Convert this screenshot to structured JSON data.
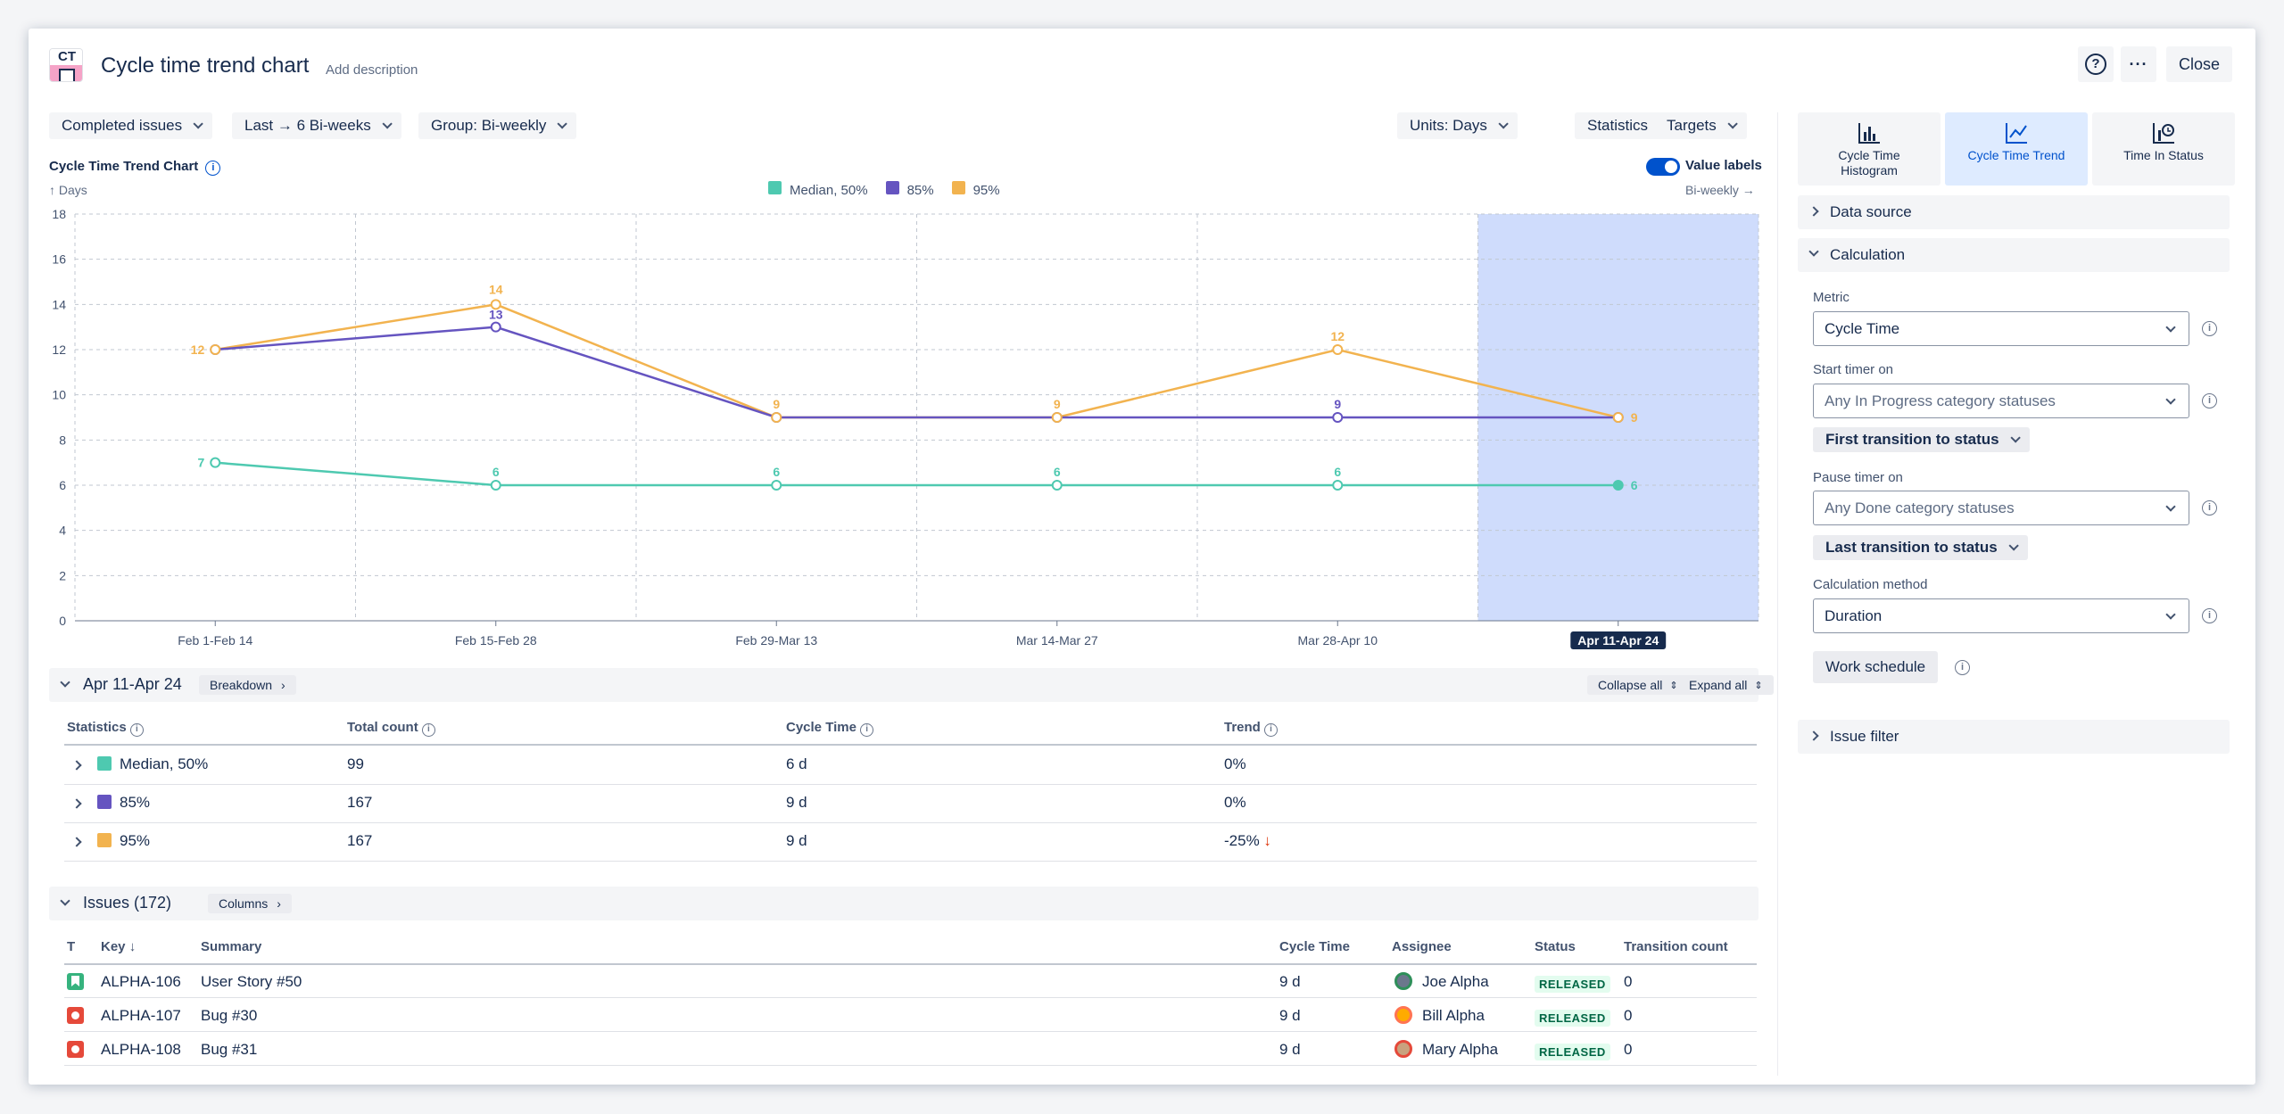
{
  "header": {
    "logo_text": "CT",
    "title": "Cycle time trend chart",
    "add_description": "Add description",
    "help_icon": "question-circle-icon",
    "more_icon": "ellipsis-icon",
    "close_label": "Close"
  },
  "toolbar": {
    "left": [
      "Completed issues",
      "Last → 6 Bi-weeks",
      "Group: Bi-weekly"
    ],
    "right": [
      "Units: Days",
      "Statistics",
      "Targets"
    ]
  },
  "chart_header": {
    "title": "Cycle Time Trend Chart",
    "y_axis_label": "↑ Days",
    "x_axis_label": "Bi-weekly →",
    "value_labels": "Value labels"
  },
  "colors": {
    "median": "#4ec9b0",
    "p85": "#6554c0",
    "p95": "#f2b34f",
    "accent": "#0052cc",
    "highlight": "#cfdcfc"
  },
  "chart_data": {
    "type": "line",
    "title": "Cycle Time Trend Chart",
    "xlabel": "Bi-weekly",
    "ylabel": "Days",
    "categories": [
      "Feb 1-Feb 14",
      "Feb 15-Feb 28",
      "Feb 29-Mar 13",
      "Mar 14-Mar 27",
      "Mar 28-Apr 10",
      "Apr 11-Apr 24"
    ],
    "ylim": [
      0,
      18
    ],
    "yticks": [
      0,
      2,
      4,
      6,
      8,
      10,
      12,
      14,
      16,
      18
    ],
    "grid": true,
    "legend_position": "top-center",
    "selected_category": "Apr 11-Apr 24",
    "series": [
      {
        "name": "Median, 50%",
        "values": [
          7,
          6,
          6,
          6,
          6,
          6
        ],
        "color": "#4ec9b0"
      },
      {
        "name": "85%",
        "values": [
          12,
          13,
          9,
          9,
          9,
          9
        ],
        "color": "#6554c0"
      },
      {
        "name": "95%",
        "values": [
          12,
          14,
          9,
          9,
          12,
          9
        ],
        "color": "#f2b34f"
      }
    ]
  },
  "breakdown": {
    "period": "Apr 11-Apr 24",
    "breakdown_label": "Breakdown",
    "collapse_all": "Collapse all",
    "expand_all": "Expand all",
    "headers": [
      "Statistics",
      "Total count",
      "Cycle Time",
      "Trend"
    ],
    "rows": [
      {
        "name": "Median, 50%",
        "color": "#4ec9b0",
        "total": "99",
        "cycle": "6 d",
        "trend": "0%"
      },
      {
        "name": "85%",
        "color": "#6554c0",
        "total": "167",
        "cycle": "9 d",
        "trend": "0%"
      },
      {
        "name": "95%",
        "color": "#f2b34f",
        "total": "167",
        "cycle": "9 d",
        "trend": "-25%"
      }
    ]
  },
  "issues": {
    "title": "Issues (172)",
    "columns_label": "Columns",
    "headers": [
      "T",
      "Key",
      "Summary",
      "Cycle Time",
      "Assignee",
      "Status",
      "Transition count"
    ],
    "rows": [
      {
        "type": "story",
        "key": "ALPHA-106",
        "summary": "User Story #50",
        "cycle": "9 d",
        "assignee": "Joe Alpha",
        "status": "RELEASED",
        "transitions": "0"
      },
      {
        "type": "bug",
        "key": "ALPHA-107",
        "summary": "Bug #30",
        "cycle": "9 d",
        "assignee": "Bill Alpha",
        "status": "RELEASED",
        "transitions": "0"
      },
      {
        "type": "bug",
        "key": "ALPHA-108",
        "summary": "Bug #31",
        "cycle": "9 d",
        "assignee": "Mary Alpha",
        "status": "RELEASED",
        "transitions": "0"
      }
    ]
  },
  "right_panel": {
    "tabs": [
      {
        "label": "Cycle Time Histogram",
        "icon": "histogram-icon"
      },
      {
        "label": "Cycle Time Trend",
        "icon": "trend-chart-icon",
        "selected": true
      },
      {
        "label": "Time In Status",
        "icon": "status-chart-icon"
      }
    ],
    "data_source": "Data source",
    "calculation": "Calculation",
    "metric_label": "Metric",
    "metric_value": "Cycle Time",
    "start_label": "Start timer on",
    "start_value": "Any In Progress category statuses",
    "start_transition": "First transition to status",
    "pause_label": "Pause timer on",
    "pause_value": "Any Done category statuses",
    "pause_transition": "Last transition to status",
    "method_label": "Calculation method",
    "method_value": "Duration",
    "work_schedule": "Work schedule",
    "issue_filter": "Issue filter"
  }
}
